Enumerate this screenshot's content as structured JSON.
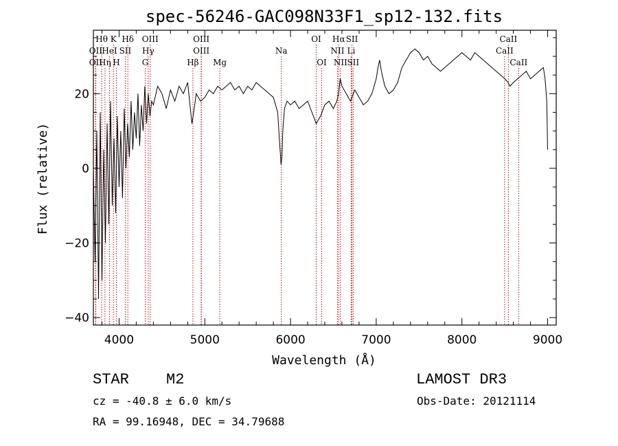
{
  "chart_data": {
    "type": "line",
    "title": "spec-56246-GAC098N33F1_sp12-132.fits",
    "xlabel": "Wavelength (Å)",
    "ylabel": "Flux (relative)",
    "xlim": [
      3700,
      9100
    ],
    "ylim": [
      -42,
      37
    ],
    "xticks": [
      4000,
      5000,
      6000,
      7000,
      8000,
      9000
    ],
    "yticks": [
      -40,
      -20,
      0,
      20
    ],
    "grid": false,
    "series": [
      {
        "name": "flux",
        "x": [
          3700,
          3720,
          3740,
          3760,
          3780,
          3800,
          3820,
          3840,
          3860,
          3880,
          3900,
          3920,
          3940,
          3960,
          3980,
          4000,
          4020,
          4040,
          4060,
          4080,
          4100,
          4120,
          4140,
          4160,
          4180,
          4200,
          4220,
          4240,
          4260,
          4280,
          4300,
          4320,
          4340,
          4360,
          4380,
          4400,
          4450,
          4500,
          4550,
          4600,
          4650,
          4700,
          4750,
          4800,
          4850,
          4870,
          4900,
          4950,
          5000,
          5050,
          5100,
          5150,
          5200,
          5250,
          5300,
          5350,
          5400,
          5450,
          5500,
          5550,
          5600,
          5650,
          5700,
          5750,
          5800,
          5850,
          5870,
          5890,
          5900,
          5910,
          5930,
          5960,
          6000,
          6050,
          6100,
          6150,
          6200,
          6250,
          6300,
          6350,
          6400,
          6450,
          6500,
          6540,
          6560,
          6580,
          6600,
          6650,
          6700,
          6750,
          6800,
          6850,
          6900,
          6950,
          7000,
          7020,
          7040,
          7060,
          7080,
          7100,
          7150,
          7200,
          7250,
          7300,
          7350,
          7400,
          7450,
          7500,
          7550,
          7600,
          7650,
          7700,
          7750,
          7800,
          7850,
          7900,
          7950,
          8000,
          8050,
          8100,
          8150,
          8200,
          8250,
          8300,
          8350,
          8400,
          8450,
          8500,
          8540,
          8560,
          8600,
          8650,
          8700,
          8750,
          8800,
          8850,
          8900,
          8950,
          8970,
          8990,
          9000
        ],
        "y": [
          0,
          -25,
          10,
          -35,
          15,
          -30,
          5,
          -20,
          12,
          -15,
          18,
          -10,
          8,
          -12,
          14,
          -5,
          10,
          -8,
          16,
          0,
          12,
          3,
          18,
          5,
          15,
          8,
          20,
          6,
          17,
          10,
          22,
          12,
          20,
          14,
          18,
          17,
          22,
          20,
          16,
          21,
          18,
          22,
          20,
          23,
          12,
          15,
          20,
          18,
          19,
          21,
          20,
          22,
          21,
          22,
          23,
          21,
          22,
          20,
          22,
          21,
          23,
          22,
          21,
          20,
          19,
          15,
          8,
          1,
          3,
          10,
          16,
          18,
          17,
          18,
          16,
          17,
          18,
          15,
          12,
          14,
          17,
          18,
          16,
          18,
          20,
          24,
          22,
          20,
          18,
          21,
          19,
          17,
          18,
          20,
          24,
          27,
          29,
          26,
          24,
          22,
          20,
          21,
          23,
          27,
          29,
          31,
          32,
          31,
          29,
          30,
          28,
          27,
          26,
          27,
          28,
          29,
          30,
          31,
          30,
          29,
          31,
          30,
          29,
          28,
          27,
          26,
          25,
          24,
          23,
          22,
          23,
          24,
          25,
          26,
          24,
          25,
          26,
          27,
          24,
          18,
          5
        ]
      }
    ],
    "line_markers": [
      {
        "label": "Hθ",
        "wavelength": 3797,
        "row": 1
      },
      {
        "label": "K",
        "wavelength": 3934,
        "row": 1
      },
      {
        "label": "Hδ",
        "wavelength": 4102,
        "row": 1
      },
      {
        "label": "OIII",
        "wavelength": 4363,
        "row": 1
      },
      {
        "label": "OIII",
        "wavelength": 4959,
        "row": 1
      },
      {
        "label": "OI",
        "wavelength": 6300,
        "row": 1
      },
      {
        "label": "Hα",
        "wavelength": 6563,
        "row": 1
      },
      {
        "label": "SII",
        "wavelength": 6717,
        "row": 1
      },
      {
        "label": "CaII",
        "wavelength": 8542,
        "row": 1
      },
      {
        "label": "OII",
        "wavelength": 3727,
        "row": 2
      },
      {
        "label": "HeI",
        "wavelength": 3889,
        "row": 2
      },
      {
        "label": "SII",
        "wavelength": 4072,
        "row": 2
      },
      {
        "label": "Hγ",
        "wavelength": 4340,
        "row": 2
      },
      {
        "label": "OIII",
        "wavelength": 4959,
        "row": 2
      },
      {
        "label": "Na",
        "wavelength": 5893,
        "row": 2
      },
      {
        "label": "NII",
        "wavelength": 6548,
        "row": 2
      },
      {
        "label": "Li",
        "wavelength": 6708,
        "row": 2
      },
      {
        "label": "CaII",
        "wavelength": 8498,
        "row": 2
      },
      {
        "label": "OII",
        "wavelength": 3727,
        "row": 3
      },
      {
        "label": "Hη",
        "wavelength": 3835,
        "row": 3
      },
      {
        "label": "H",
        "wavelength": 3968,
        "row": 3
      },
      {
        "label": "G",
        "wavelength": 4305,
        "row": 3
      },
      {
        "label": "Hβ",
        "wavelength": 4861,
        "row": 3
      },
      {
        "label": "Mg",
        "wavelength": 5175,
        "row": 3
      },
      {
        "label": "OI",
        "wavelength": 6364,
        "row": 3
      },
      {
        "label": "NII",
        "wavelength": 6583,
        "row": 3
      },
      {
        "label": "SII",
        "wavelength": 6731,
        "row": 3
      },
      {
        "label": "CaII",
        "wavelength": 8662,
        "row": 3
      }
    ],
    "colors": {
      "spectrum": "#000000",
      "marker": "#cc0000",
      "axis": "#000000"
    }
  },
  "info": {
    "object_class": "STAR",
    "subclass": "M2",
    "survey": "LAMOST DR3",
    "cz": "cz = -40.8 ± 6.0 km/s",
    "obs_date": "Obs-Date: 20121114",
    "coords": "RA =  99.16948, DEC =  34.79688"
  }
}
